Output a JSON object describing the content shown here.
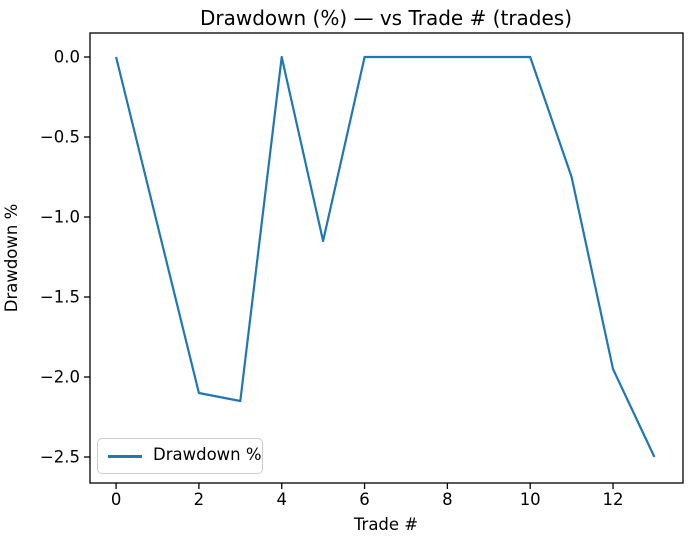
{
  "chart_data": {
    "type": "line",
    "title": "Drawdown (%) — vs Trade # (trades)",
    "xlabel": "Trade #",
    "ylabel": "Drawdown %",
    "x": [
      0,
      1,
      2,
      3,
      4,
      5,
      6,
      7,
      8,
      9,
      10,
      11,
      12,
      13
    ],
    "series": [
      {
        "name": "Drawdown %",
        "color": "#1f77b4",
        "values": [
          0.0,
          -1.05,
          -2.1,
          -2.15,
          0.0,
          -1.15,
          0.0,
          0.0,
          0.0,
          0.0,
          0.0,
          -0.75,
          -1.95,
          -2.5
        ]
      }
    ],
    "x_ticks": [
      0,
      2,
      4,
      6,
      8,
      10,
      12
    ],
    "x_tick_labels": [
      "0",
      "2",
      "4",
      "6",
      "8",
      "10",
      "12"
    ],
    "y_ticks": [
      0.0,
      -0.5,
      -1.0,
      -1.5,
      -2.0,
      -2.5
    ],
    "y_tick_labels": [
      "0.0",
      "−0.5",
      "−1.0",
      "−1.5",
      "−2.0",
      "−2.5"
    ],
    "xlim": [
      -0.63,
      13.69
    ],
    "ylim": [
      -2.6625,
      0.15
    ],
    "grid": false,
    "legend_position": "lower left",
    "legend_entries": [
      {
        "label": "Drawdown %",
        "color": "#1f77b4"
      }
    ],
    "axis_color": "#000000",
    "background_color": "#ffffff"
  }
}
